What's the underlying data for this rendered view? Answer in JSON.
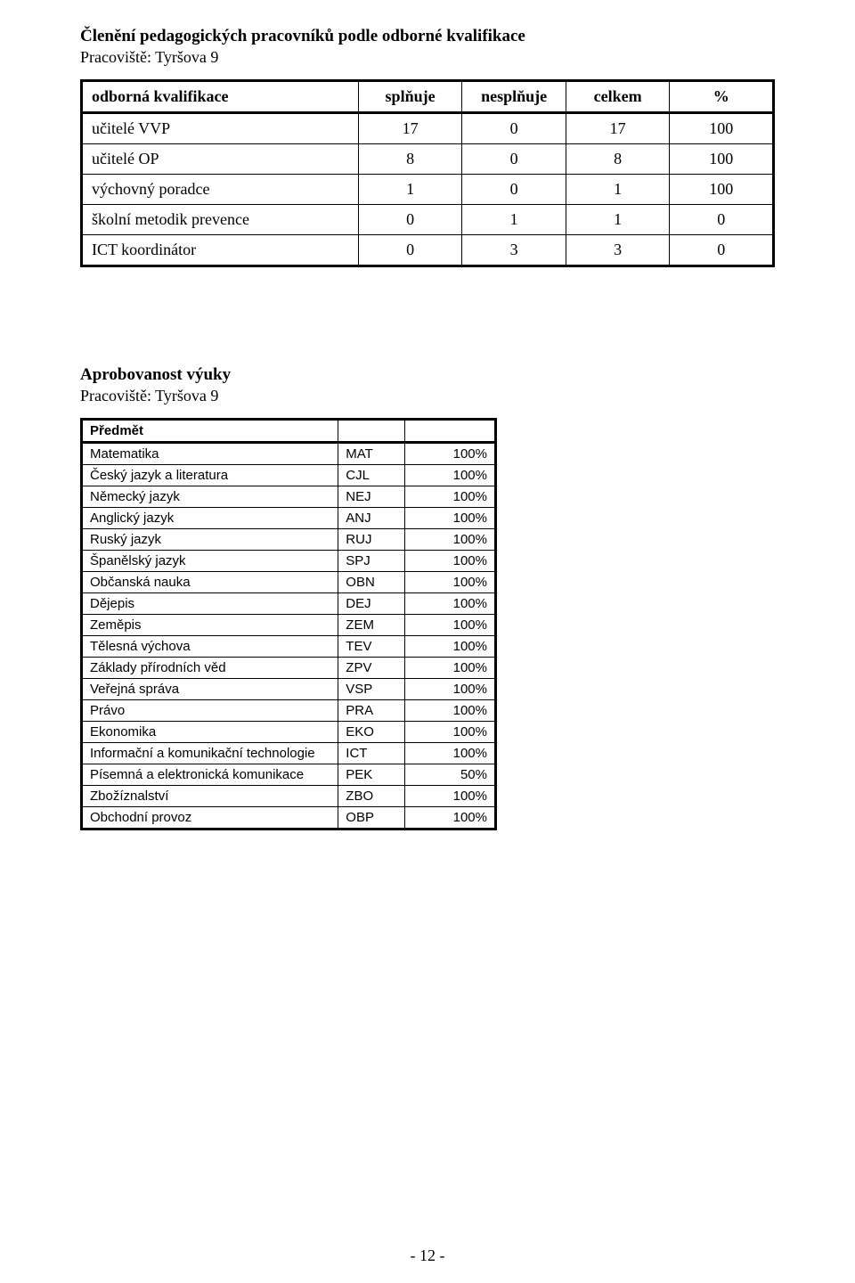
{
  "section1": {
    "title": "Členění pedagogických pracovníků podle odborné kvalifikace",
    "subline": "Pracoviště: Tyršova 9"
  },
  "table1": {
    "headers": {
      "label": "odborná kvalifikace",
      "c1": "splňuje",
      "c2": "nesplňuje",
      "c3": "celkem",
      "c4": "%"
    },
    "rows": [
      {
        "label": "učitelé VVP",
        "c1": "17",
        "c2": "0",
        "c3": "17",
        "c4": "100"
      },
      {
        "label": "učitelé OP",
        "c1": "8",
        "c2": "0",
        "c3": "8",
        "c4": "100"
      },
      {
        "label": "výchovný poradce",
        "c1": "1",
        "c2": "0",
        "c3": "1",
        "c4": "100"
      },
      {
        "label": "školní metodik prevence",
        "c1": "0",
        "c2": "1",
        "c3": "1",
        "c4": "0"
      },
      {
        "label": "ICT koordinátor",
        "c1": "0",
        "c2": "3",
        "c3": "3",
        "c4": "0"
      }
    ]
  },
  "section2": {
    "title": "Aprobovanost výuky",
    "subline": "Pracoviště: Tyršova 9"
  },
  "table2": {
    "header": "Předmět",
    "rows": [
      {
        "name": "Matematika",
        "code": "MAT",
        "pct": "100%"
      },
      {
        "name": "Český jazyk a literatura",
        "code": "CJL",
        "pct": "100%"
      },
      {
        "name": "Německý jazyk",
        "code": "NEJ",
        "pct": "100%"
      },
      {
        "name": "Anglický jazyk",
        "code": "ANJ",
        "pct": "100%"
      },
      {
        "name": "Ruský jazyk",
        "code": "RUJ",
        "pct": "100%"
      },
      {
        "name": "Španělský jazyk",
        "code": "SPJ",
        "pct": "100%"
      },
      {
        "name": "Občanská nauka",
        "code": "OBN",
        "pct": "100%"
      },
      {
        "name": "Dějepis",
        "code": "DEJ",
        "pct": "100%"
      },
      {
        "name": "Zeměpis",
        "code": "ZEM",
        "pct": "100%"
      },
      {
        "name": "Tělesná výchova",
        "code": "TEV",
        "pct": "100%"
      },
      {
        "name": "Základy přírodních věd",
        "code": "ZPV",
        "pct": "100%"
      },
      {
        "name": "Veřejná správa",
        "code": "VSP",
        "pct": "100%"
      },
      {
        "name": "Právo",
        "code": "PRA",
        "pct": "100%"
      },
      {
        "name": "Ekonomika",
        "code": "EKO",
        "pct": "100%"
      },
      {
        "name": "Informační a komunikační technologie",
        "code": "ICT",
        "pct": "100%"
      },
      {
        "name": "Písemná a elektronická komunikace",
        "code": "PEK",
        "pct": "50%"
      },
      {
        "name": "Zbožíznalství",
        "code": "ZBO",
        "pct": "100%"
      },
      {
        "name": "Obchodní provoz",
        "code": "OBP",
        "pct": "100%"
      }
    ]
  },
  "pageNumber": "- 12 -"
}
